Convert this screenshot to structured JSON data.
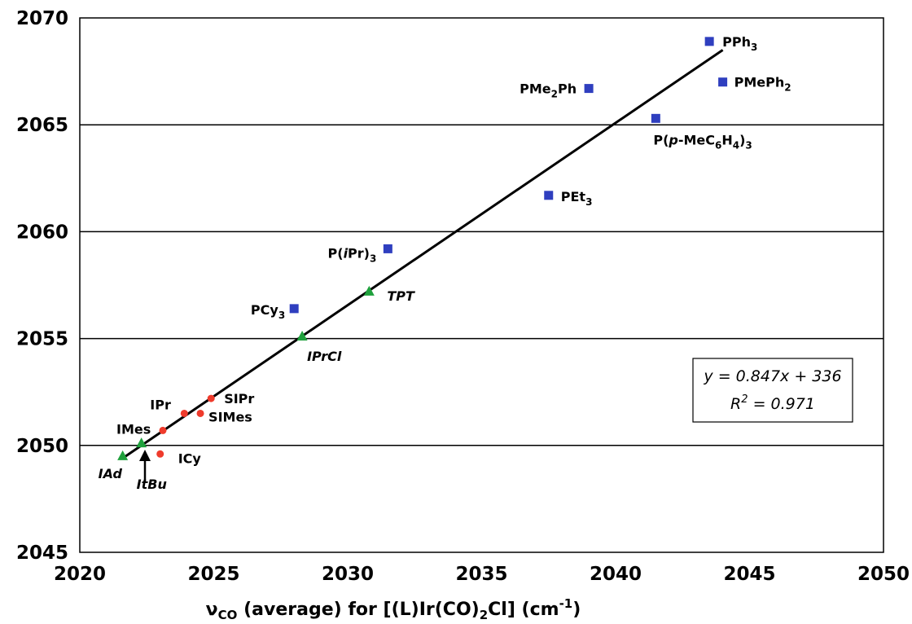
{
  "chart_data": {
    "type": "scatter",
    "xlabel": "vCO (average) for [(L)Ir(CO)2Cl] (cm-1)",
    "xlabel_parts": {
      "nu": "ν",
      "nu_sub": "CO",
      "a": " (average) for [(L)Ir(CO)",
      "a_sub": "2",
      "b": "Cl] (cm",
      "b_sup": "-1",
      "c": ")"
    },
    "ylabel": "",
    "xlim": [
      2020,
      2050
    ],
    "ylim": [
      2045,
      2070
    ],
    "x_ticks": [
      2020,
      2025,
      2030,
      2035,
      2040,
      2045,
      2050
    ],
    "y_ticks": [
      2045,
      2050,
      2055,
      2060,
      2065,
      2070
    ],
    "grid": {
      "horizontal": true,
      "vertical": false
    },
    "colors": {
      "phosphines": "#2f3fbf",
      "nhc": "#ef3b2c",
      "nhc_italic": "#1fa03c",
      "fit_line": "#000000"
    },
    "series": [
      {
        "marker": "square",
        "color": "#2f3fbf",
        "points": [
          {
            "label": "PPh3",
            "x": 2043.5,
            "y": 2068.9
          },
          {
            "label": "PMe2Ph",
            "x": 2039.0,
            "y": 2066.7
          },
          {
            "label": "PMePh2",
            "x": 2044.0,
            "y": 2067.0
          },
          {
            "label": "P(p-MeC6H4)3",
            "x": 2041.5,
            "y": 2065.3
          },
          {
            "label": "PEt3",
            "x": 2037.5,
            "y": 2061.7
          },
          {
            "label": "P(iPr)3",
            "x": 2031.5,
            "y": 2059.2
          },
          {
            "label": "PCy3",
            "x": 2028.0,
            "y": 2056.4
          }
        ]
      },
      {
        "marker": "circle",
        "color": "#ef3b2c",
        "points": [
          {
            "label": "SIPr",
            "x": 2024.9,
            "y": 2052.2
          },
          {
            "label": "IPr",
            "x": 2023.9,
            "y": 2051.5
          },
          {
            "label": "SIMes",
            "x": 2024.5,
            "y": 2051.5
          },
          {
            "label": "IMes",
            "x": 2023.1,
            "y": 2050.7
          },
          {
            "label": "ICy",
            "x": 2023.0,
            "y": 2049.6
          }
        ]
      },
      {
        "marker": "triangle",
        "color": "#1fa03c",
        "points": [
          {
            "label": "TPT",
            "x": 2030.8,
            "y": 2057.2
          },
          {
            "label": "IPrCl",
            "x": 2028.3,
            "y": 2055.1
          },
          {
            "label": "ItBu",
            "x": 2022.3,
            "y": 2050.1
          },
          {
            "label": "IAd",
            "x": 2021.6,
            "y": 2049.5
          }
        ]
      }
    ],
    "fit_line": {
      "x": [
        2021.6,
        2044.0
      ],
      "y": [
        2049.4,
        2068.5
      ]
    },
    "annotation": {
      "equation": "y = 0.847x + 336",
      "r2_prefix": "R",
      "r2_sup": "2",
      "r2_rest": " = 0.971"
    }
  }
}
